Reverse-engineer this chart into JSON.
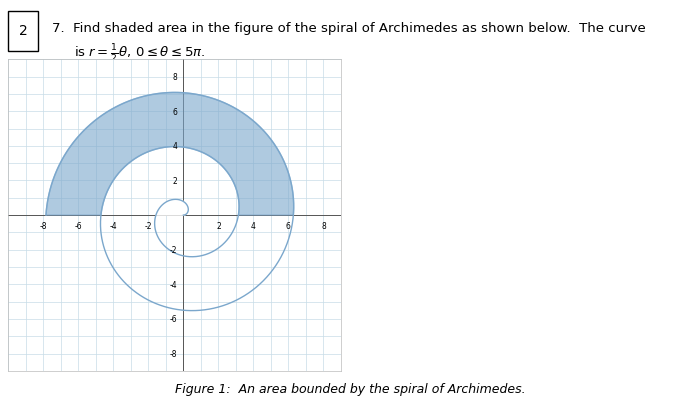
{
  "spiral_color": "#7ba7cc",
  "spiral_linewidth": 1.0,
  "shaded_color": "#7ba7cc",
  "shaded_alpha": 0.6,
  "grid_color": "#c8dce8",
  "grid_linewidth": 0.5,
  "axis_color": "#555555",
  "background_color": "#ffffff",
  "xlim": [
    -10,
    9
  ],
  "ylim": [
    -9,
    9
  ],
  "xticks": [
    -8,
    -6,
    -4,
    -2,
    2,
    4,
    6,
    8
  ],
  "yticks": [
    -8,
    -6,
    -4,
    -2,
    2,
    4,
    6,
    8
  ],
  "box_number": "2",
  "caption": "Figure 1:  An area bounded by the spiral of Archimedes.",
  "line1": "7.  Find shaded area in the figure of the spiral of Archimedes as shown below.  The curve",
  "line2": "is $r = \\frac{1}{2}\\theta,\\, 0 \\leq \\theta \\leq 5\\pi$."
}
